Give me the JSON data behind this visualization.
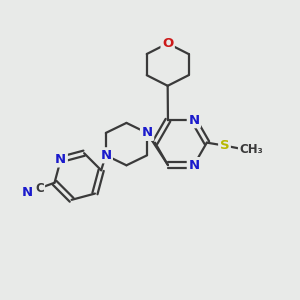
{
  "bg_color": "#e8eae8",
  "bond_color": "#3a3a3a",
  "atom_colors": {
    "C": "#3a3a3a",
    "N": "#1a1acc",
    "O": "#cc1a1a",
    "S": "#b8b800"
  },
  "bond_width": 1.6,
  "font_size": 9.5,
  "figsize": [
    3.0,
    3.0
  ],
  "dpi": 100,
  "xlim": [
    0,
    10
  ],
  "ylim": [
    0,
    10
  ]
}
